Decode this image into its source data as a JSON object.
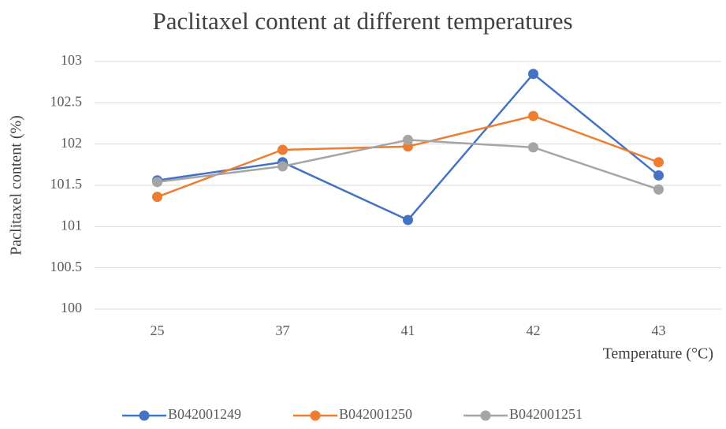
{
  "chart_data": {
    "type": "line",
    "title": "Paclitaxel content at different temperatures",
    "x_label": "Temperature (°C)",
    "y_label": "Paclitaxel content (%)",
    "categories": [
      "25",
      "37",
      "41",
      "42",
      "43"
    ],
    "series": [
      {
        "name": "B042001249",
        "color": "#4472c4",
        "values": [
          101.56,
          101.78,
          101.08,
          102.85,
          101.62
        ]
      },
      {
        "name": "B042001250",
        "color": "#ed7d31",
        "values": [
          101.36,
          101.93,
          101.97,
          102.34,
          101.78
        ]
      },
      {
        "name": "B042001251",
        "color": "#a5a5a5",
        "values": [
          101.54,
          101.73,
          102.05,
          101.96,
          101.45
        ]
      }
    ],
    "ylim": [
      100,
      103
    ],
    "yticks": [
      100,
      100.5,
      101,
      101.5,
      102,
      102.5,
      103
    ],
    "grid": true,
    "legend_position": "bottom"
  }
}
